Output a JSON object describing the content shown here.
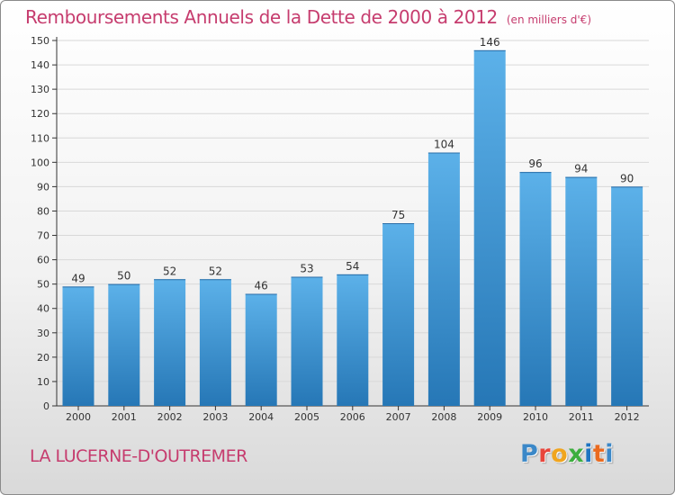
{
  "title": {
    "main": "Remboursements Annuels de la Dette de 2000 à 2012",
    "unit": "(en milliers d'€)"
  },
  "commune": "LA LUCERNE-D'OUTREMER",
  "logo": {
    "text": "Proxiti",
    "letter_colors": [
      "#3b88c8",
      "#e8463c",
      "#f0a51f",
      "#3cae3e",
      "#1e74c2",
      "#ea6a1f",
      "#3b88c8"
    ]
  },
  "colors": {
    "title": "#c63c6e",
    "bar_top": "#5cb1e9",
    "bar_bottom": "#2677b6",
    "axis": "#333333",
    "grid": "#d8d8d8"
  },
  "chart_data": {
    "type": "bar",
    "categories": [
      "2000",
      "2001",
      "2002",
      "2003",
      "2004",
      "2005",
      "2006",
      "2007",
      "2008",
      "2009",
      "2010",
      "2011",
      "2012"
    ],
    "values": [
      49,
      50,
      52,
      52,
      46,
      53,
      54,
      75,
      104,
      146,
      96,
      94,
      90
    ],
    "yticks": [
      0,
      10,
      20,
      30,
      40,
      50,
      60,
      70,
      80,
      90,
      100,
      110,
      120,
      130,
      140,
      150
    ],
    "ylim": [
      0,
      150
    ],
    "grid": true,
    "data_labels": true
  }
}
